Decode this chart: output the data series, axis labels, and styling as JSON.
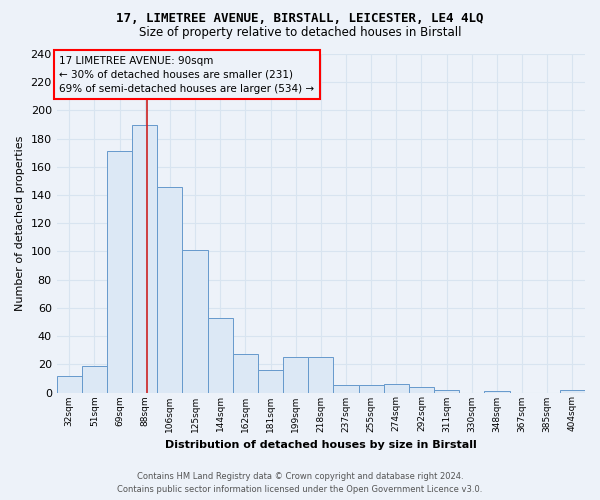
{
  "title1": "17, LIMETREE AVENUE, BIRSTALL, LEICESTER, LE4 4LQ",
  "title2": "Size of property relative to detached houses in Birstall",
  "xlabel": "Distribution of detached houses by size in Birstall",
  "ylabel": "Number of detached properties",
  "categories": [
    "32sqm",
    "51sqm",
    "69sqm",
    "88sqm",
    "106sqm",
    "125sqm",
    "144sqm",
    "162sqm",
    "181sqm",
    "199sqm",
    "218sqm",
    "237sqm",
    "255sqm",
    "274sqm",
    "292sqm",
    "311sqm",
    "330sqm",
    "348sqm",
    "367sqm",
    "385sqm",
    "404sqm"
  ],
  "values": [
    12,
    19,
    171,
    190,
    146,
    101,
    53,
    27,
    16,
    25,
    25,
    5,
    5,
    6,
    4,
    2,
    0,
    1,
    0,
    0,
    2
  ],
  "bar_color": "#dce8f5",
  "bar_edge_color": "#6699cc",
  "annotation_line1": "17 LIMETREE AVENUE: 90sqm",
  "annotation_line2": "← 30% of detached houses are smaller (231)",
  "annotation_line3": "69% of semi-detached houses are larger (534) →",
  "vline_color": "#cc2222",
  "vline_pos": 3.1,
  "ylim": [
    0,
    240
  ],
  "yticks": [
    0,
    20,
    40,
    60,
    80,
    100,
    120,
    140,
    160,
    180,
    200,
    220,
    240
  ],
  "background_color": "#edf2f9",
  "grid_color": "#d8e4f0",
  "footer_line1": "Contains HM Land Registry data © Crown copyright and database right 2024.",
  "footer_line2": "Contains public sector information licensed under the Open Government Licence v3.0."
}
